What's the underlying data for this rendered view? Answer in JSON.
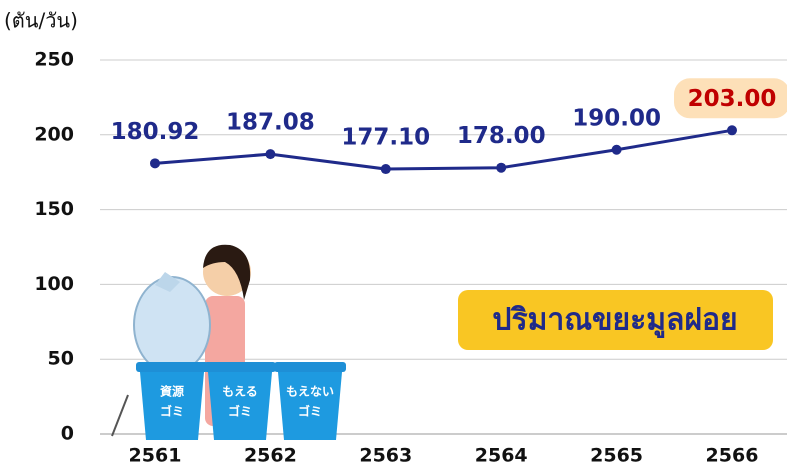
{
  "chart_data": {
    "type": "line",
    "y_axis_label": "(ตัน/วัน)",
    "categories": [
      "2561",
      "2562",
      "2563",
      "2564",
      "2565",
      "2566"
    ],
    "values": [
      180.92,
      187.08,
      177.1,
      178.0,
      190.0,
      203.0
    ],
    "value_labels": [
      "180.92",
      "187.08",
      "177.10",
      "178.00",
      "190.00",
      "203.00"
    ],
    "color": "#1f2a8a",
    "highlight_index": 5,
    "highlight_color": "#c00000",
    "highlight_background": "#fde0b8",
    "ylim": [
      0,
      250
    ],
    "yticks": [
      0,
      50,
      100,
      150,
      200,
      250
    ],
    "grid": true,
    "annotation": "ปริมาณขยะมูลฝอย",
    "bin_labels": [
      [
        "資源",
        "ゴミ"
      ],
      [
        "もえる",
        "ゴミ"
      ],
      [
        "もえない",
        "ゴミ"
      ]
    ]
  }
}
